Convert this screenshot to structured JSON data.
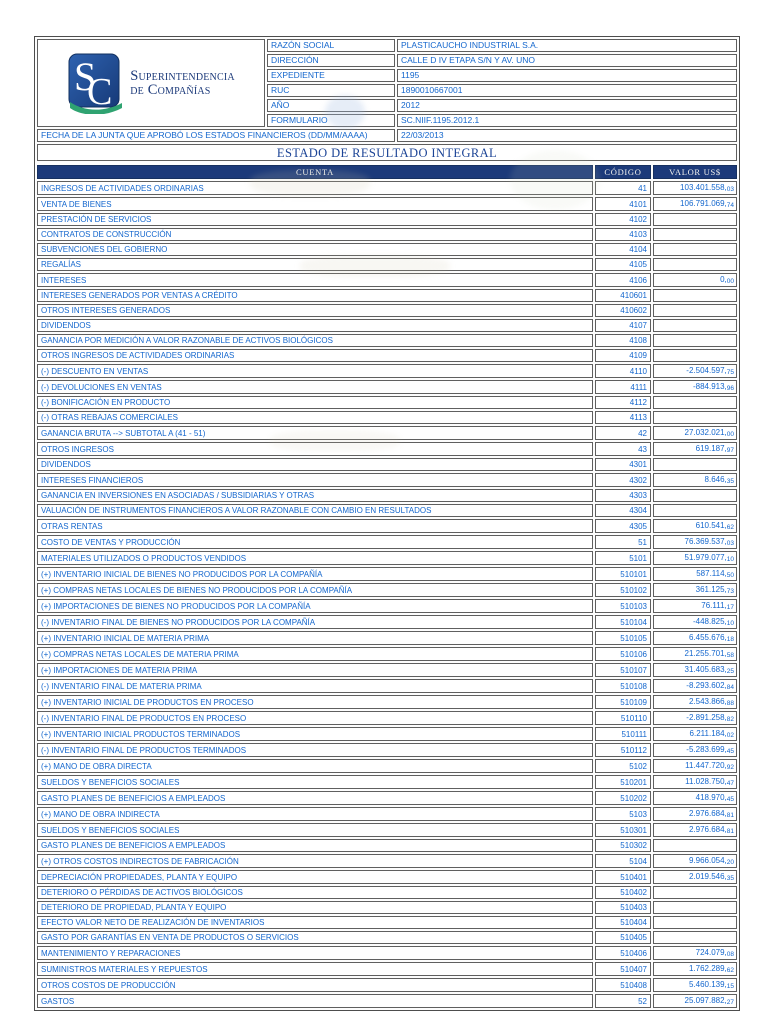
{
  "logo": {
    "monogram_s": "S",
    "monogram_c": "C",
    "org_line1": "Superintendencia",
    "org_line2": "de Compañías",
    "colors": {
      "badge_blue_dark": "#173a78",
      "badge_blue_light": "#2e62b0",
      "swoosh_green": "#2fa371",
      "name_navy": "#1c3a7a"
    }
  },
  "company_info": {
    "rows": [
      {
        "label": "RAZÓN SOCIAL",
        "value": "PLASTICAUCHO INDUSTRIAL S.A."
      },
      {
        "label": "DIRECCIÓN",
        "value": "CALLE D IV ETAPA S/N Y AV. UNO"
      },
      {
        "label": "EXPEDIENTE",
        "value": "1195"
      },
      {
        "label": "RUC",
        "value": "1890010667001"
      },
      {
        "label": "AÑO",
        "value": "2012"
      },
      {
        "label": "FORMULARIO",
        "value": "SC.NIIF.1195.2012.1"
      }
    ],
    "board_date_label": "FECHA DE LA JUNTA QUE APROBÓ LOS ESTADOS FINANCIEROS (DD/MM/AAAA)",
    "board_date_value": "22/03/2013"
  },
  "report": {
    "title": "ESTADO DE RESULTADO INTEGRAL",
    "columns": {
      "account": "CUENTA",
      "code": "CÓDIGO",
      "value": "VALOR US$"
    },
    "colors": {
      "header_navy": "#1c3a7a",
      "text_blue": "#1366cd",
      "title_blue": "#1c4496"
    },
    "rows": [
      {
        "account": "INGRESOS DE ACTIVIDADES ORDINARIAS",
        "code": "41",
        "value": "103.401.558,03"
      },
      {
        "account": "VENTA DE BIENES",
        "code": "4101",
        "value": "106.791.069,74"
      },
      {
        "account": "PRESTACIÓN DE SERVICIOS",
        "code": "4102",
        "value": ""
      },
      {
        "account": "CONTRATOS DE CONSTRUCCIÓN",
        "code": "4103",
        "value": ""
      },
      {
        "account": "SUBVENCIONES DEL GOBIERNO",
        "code": "4104",
        "value": ""
      },
      {
        "account": "REGALÍAS",
        "code": "4105",
        "value": ""
      },
      {
        "account": "INTERESES",
        "code": "4106",
        "value": "0,00"
      },
      {
        "account": "INTERESES GENERADOS POR VENTAS A CRÉDITO",
        "code": "410601",
        "value": ""
      },
      {
        "account": "OTROS INTERESES GENERADOS",
        "code": "410602",
        "value": ""
      },
      {
        "account": "DIVIDENDOS",
        "code": "4107",
        "value": ""
      },
      {
        "account": "GANANCIA POR MEDICIÓN A VALOR RAZONABLE DE ACTIVOS BIOLÓGICOS",
        "code": "4108",
        "value": ""
      },
      {
        "account": "OTROS INGRESOS DE ACTIVIDADES ORDINARIAS",
        "code": "4109",
        "value": ""
      },
      {
        "account": "(-) DESCUENTO EN VENTAS",
        "code": "4110",
        "value": "-2.504.597,75"
      },
      {
        "account": "(-) DEVOLUCIONES EN VENTAS",
        "code": "4111",
        "value": "-884.913,96"
      },
      {
        "account": "(-) BONIFICACIÓN EN PRODUCTO",
        "code": "4112",
        "value": ""
      },
      {
        "account": "(-) OTRAS REBAJAS COMERCIALES",
        "code": "4113",
        "value": ""
      },
      {
        "account": "GANANCIA BRUTA --> SUBTOTAL A (41 - 51)",
        "code": "42",
        "value": "27.032.021,00"
      },
      {
        "account": "OTROS INGRESOS",
        "code": "43",
        "value": "619.187,97"
      },
      {
        "account": "DIVIDENDOS",
        "code": "4301",
        "value": ""
      },
      {
        "account": "INTERESES FINANCIEROS",
        "code": "4302",
        "value": "8.646,35"
      },
      {
        "account": "GANANCIA EN INVERSIONES EN ASOCIADAS / SUBSIDIARIAS Y OTRAS",
        "code": "4303",
        "value": ""
      },
      {
        "account": "VALUACIÓN DE INSTRUMENTOS FINANCIEROS A VALOR RAZONABLE CON CAMBIO EN RESULTADOS",
        "code": "4304",
        "value": ""
      },
      {
        "account": "OTRAS RENTAS",
        "code": "4305",
        "value": "610.541,62"
      },
      {
        "account": "COSTO DE VENTAS Y PRODUCCIÓN",
        "code": "51",
        "value": "76.369.537,03"
      },
      {
        "account": "MATERIALES UTILIZADOS O PRODUCTOS VENDIDOS",
        "code": "5101",
        "value": "51.979.077,10"
      },
      {
        "account": "(+) INVENTARIO INICIAL DE BIENES NO PRODUCIDOS POR LA COMPAÑÍA",
        "code": "510101",
        "value": "587.114,50"
      },
      {
        "account": "(+) COMPRAS NETAS LOCALES DE BIENES NO PRODUCIDOS POR LA COMPAÑÍA",
        "code": "510102",
        "value": "361.125,73"
      },
      {
        "account": "(+) IMPORTACIONES DE BIENES NO PRODUCIDOS POR LA COMPAÑÍA",
        "code": "510103",
        "value": "76.111,17"
      },
      {
        "account": "(-) INVENTARIO FINAL DE BIENES NO PRODUCIDOS POR LA COMPAÑÍA",
        "code": "510104",
        "value": "-448.825,10"
      },
      {
        "account": "(+) INVENTARIO INICIAL DE MATERIA PRIMA",
        "code": "510105",
        "value": "6.455.676,18"
      },
      {
        "account": "(+) COMPRAS NETAS LOCALES DE MATERIA PRIMA",
        "code": "510106",
        "value": "21.255.701,58"
      },
      {
        "account": "(+) IMPORTACIONES DE MATERIA PRIMA",
        "code": "510107",
        "value": "31.405.683,25"
      },
      {
        "account": "(-) INVENTARIO FINAL DE MATERIA PRIMA",
        "code": "510108",
        "value": "-8.293.602,84"
      },
      {
        "account": "(+) INVENTARIO INICIAL DE PRODUCTOS EN PROCESO",
        "code": "510109",
        "value": "2.543.866,88"
      },
      {
        "account": "(-) INVENTARIO FINAL DE PRODUCTOS EN PROCESO",
        "code": "510110",
        "value": "-2.891.258,82"
      },
      {
        "account": "(+) INVENTARIO INICIAL PRODUCTOS TERMINADOS",
        "code": "510111",
        "value": "6.211.184,02"
      },
      {
        "account": "(-) INVENTARIO FINAL DE PRODUCTOS TERMINADOS",
        "code": "510112",
        "value": "-5.283.699,45"
      },
      {
        "account": "(+) MANO DE OBRA DIRECTA",
        "code": "5102",
        "value": "11.447.720,92"
      },
      {
        "account": "SUELDOS Y BENEFICIOS SOCIALES",
        "code": "510201",
        "value": "11.028.750,47"
      },
      {
        "account": "GASTO PLANES DE BENEFICIOS A EMPLEADOS",
        "code": "510202",
        "value": "418.970,45"
      },
      {
        "account": "(+) MANO DE OBRA INDIRECTA",
        "code": "5103",
        "value": "2.976.684,81"
      },
      {
        "account": "SUELDOS Y BENEFICIOS SOCIALES",
        "code": "510301",
        "value": "2.976.684,81"
      },
      {
        "account": "GASTO PLANES DE BENEFICIOS A EMPLEADOS",
        "code": "510302",
        "value": ""
      },
      {
        "account": "(+) OTROS COSTOS INDIRECTOS DE FABRICACIÓN",
        "code": "5104",
        "value": "9.966.054,20"
      },
      {
        "account": "DEPRECIACIÓN PROPIEDADES, PLANTA Y EQUIPO",
        "code": "510401",
        "value": "2.019.546,35"
      },
      {
        "account": "DETERIORO O PÉRDIDAS DE ACTIVOS BIOLÓGICOS",
        "code": "510402",
        "value": ""
      },
      {
        "account": "DETERIORO DE PROPIEDAD, PLANTA Y EQUIPO",
        "code": "510403",
        "value": ""
      },
      {
        "account": "EFECTO VALOR NETO DE REALIZACIÓN DE INVENTARIOS",
        "code": "510404",
        "value": ""
      },
      {
        "account": "GASTO POR GARANTÍAS EN VENTA DE PRODUCTOS O SERVICIOS",
        "code": "510405",
        "value": ""
      },
      {
        "account": "MANTENIMIENTO Y REPARACIONES",
        "code": "510406",
        "value": "724.079,08"
      },
      {
        "account": "SUMINISTROS MATERIALES Y REPUESTOS",
        "code": "510407",
        "value": "1.762.289,62"
      },
      {
        "account": "OTROS COSTOS DE PRODUCCIÓN",
        "code": "510408",
        "value": "5.460.139,15"
      },
      {
        "account": "GASTOS",
        "code": "52",
        "value": "25.097.882,27"
      }
    ]
  }
}
